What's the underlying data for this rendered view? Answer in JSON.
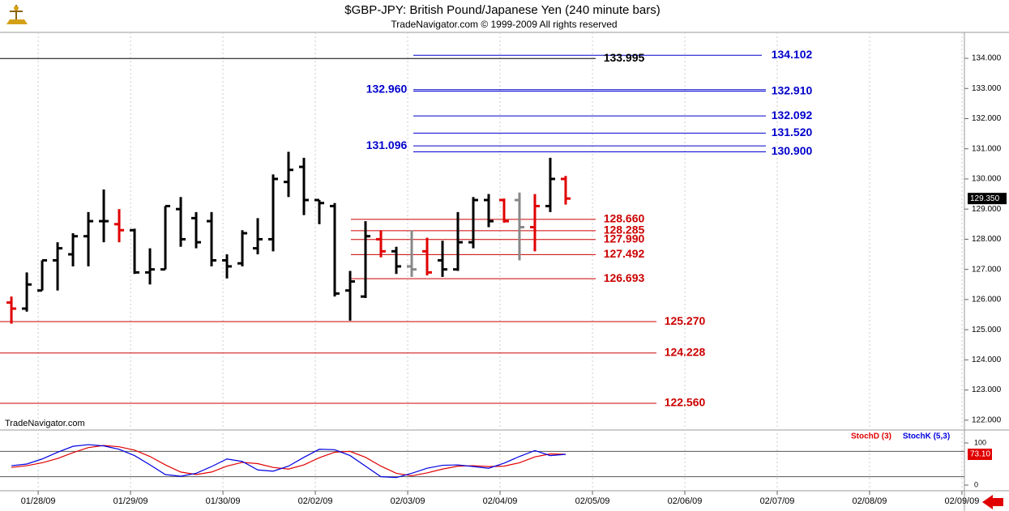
{
  "chart_data": [
    {
      "type": "ohlc",
      "title": "$GBP-JPY:  British Pound/Japanese Yen  (240 minute bars)",
      "subtitle": "TradeNavigator.com © 1999-2009 All rights reserved",
      "watermark": "TradeNavigator.com",
      "x": [
        0,
        1,
        2,
        3,
        4,
        5,
        6,
        7,
        8,
        9,
        10,
        11,
        12,
        13,
        14,
        15,
        16,
        17,
        18,
        19,
        20,
        21,
        22,
        23,
        24,
        25,
        26,
        27,
        28,
        29,
        30,
        31,
        32,
        33,
        34,
        35,
        36
      ],
      "open": [
        125.9,
        125.7,
        126.3,
        127.3,
        127.5,
        128.1,
        128.6,
        128.5,
        128.3,
        126.9,
        127.0,
        129.0,
        128.7,
        128.6,
        127.3,
        127.2,
        127.7,
        128.0,
        129.9,
        130.4,
        129.3,
        129.1,
        126.3,
        126.1,
        128.0,
        127.6,
        127.1,
        127.6,
        127.3,
        127.0,
        127.9,
        129.3,
        129.3,
        129.3,
        128.4,
        129.1,
        130.0
      ],
      "high": [
        126.1,
        126.9,
        127.3,
        127.9,
        128.2,
        128.9,
        129.65,
        129.0,
        128.35,
        127.7,
        129.1,
        129.4,
        128.9,
        128.9,
        127.5,
        128.3,
        128.7,
        130.15,
        130.9,
        130.7,
        129.3,
        129.2,
        126.95,
        128.6,
        128.3,
        127.75,
        128.3,
        128.05,
        127.95,
        128.9,
        129.4,
        129.5,
        129.35,
        129.55,
        129.5,
        130.7,
        130.1
      ],
      "low": [
        125.2,
        125.6,
        126.3,
        126.3,
        127.1,
        127.1,
        127.9,
        127.9,
        126.85,
        126.5,
        127.0,
        127.75,
        127.7,
        127.1,
        126.7,
        127.1,
        127.5,
        127.6,
        129.4,
        128.8,
        128.5,
        126.1,
        125.3,
        126.05,
        127.4,
        126.85,
        126.75,
        126.8,
        126.75,
        126.95,
        127.7,
        128.4,
        128.55,
        127.3,
        127.6,
        128.9,
        129.15
      ],
      "close": [
        125.7,
        126.5,
        127.3,
        127.7,
        128.1,
        128.6,
        128.6,
        128.3,
        126.9,
        127.0,
        129.1,
        128.0,
        127.9,
        127.3,
        127.1,
        128.2,
        128.0,
        130.0,
        130.3,
        129.3,
        129.2,
        126.2,
        126.6,
        128.1,
        127.6,
        127.1,
        127.0,
        126.9,
        127.0,
        127.9,
        129.3,
        128.6,
        128.6,
        128.4,
        129.1,
        130.0,
        129.35
      ],
      "colors": [
        "#e00000",
        "#000000",
        "#000000",
        "#000000",
        "#000000",
        "#000000",
        "#000000",
        "#e00000",
        "#000000",
        "#000000",
        "#000000",
        "#000000",
        "#000000",
        "#000000",
        "#000000",
        "#000000",
        "#000000",
        "#000000",
        "#000000",
        "#000000",
        "#000000",
        "#000000",
        "#000000",
        "#000000",
        "#e00000",
        "#000000",
        "#888888",
        "#e00000",
        "#000000",
        "#000000",
        "#000000",
        "#000000",
        "#e00000",
        "#888888",
        "#e00000",
        "#000000",
        "#e00000"
      ],
      "xlim": [
        -0.74,
        61.9
      ],
      "xticks": [
        {
          "value": 1.74,
          "label": "01/28/09"
        },
        {
          "value": 7.74,
          "label": "01/29/09"
        },
        {
          "value": 13.74,
          "label": "01/30/09"
        },
        {
          "value": 19.74,
          "label": "02/02/09"
        },
        {
          "value": 25.74,
          "label": "02/03/09"
        },
        {
          "value": 31.74,
          "label": "02/04/09"
        },
        {
          "value": 37.74,
          "label": "02/05/09"
        },
        {
          "value": 43.74,
          "label": "02/06/09"
        },
        {
          "value": 49.74,
          "label": "02/07/09"
        },
        {
          "value": 55.74,
          "label": "02/08/09"
        },
        {
          "value": 61.74,
          "label": "02/09/09"
        }
      ],
      "ylim": [
        121.7,
        134.86
      ],
      "yticks": [
        {
          "value": 122,
          "label": "122.000"
        },
        {
          "value": 123,
          "label": "123.000"
        },
        {
          "value": 124,
          "label": "124.000"
        },
        {
          "value": 125,
          "label": "125.000"
        },
        {
          "value": 126,
          "label": "126.000"
        },
        {
          "value": 127,
          "label": "127.000"
        },
        {
          "value": 128,
          "label": "128.000"
        },
        {
          "value": 129,
          "label": "129.000"
        },
        {
          "value": 130,
          "label": "130.000"
        },
        {
          "value": 131,
          "label": "131.000"
        },
        {
          "value": 132,
          "label": "132.000"
        },
        {
          "value": 133,
          "label": "133.000"
        },
        {
          "value": 134,
          "label": "134.000"
        }
      ],
      "last_price": {
        "value": 129.35,
        "label": "129.350"
      },
      "levels": [
        {
          "value": 134.102,
          "label": "134.102",
          "color": "#0000cc"
        },
        {
          "value": 133.995,
          "label": "133.995",
          "color": "#000000"
        },
        {
          "value": 132.96,
          "label": "132.960",
          "color": "#0000cc"
        },
        {
          "value": 132.91,
          "label": "132.910",
          "color": "#0000cc"
        },
        {
          "value": 132.092,
          "label": "132.092",
          "color": "#0000cc"
        },
        {
          "value": 131.52,
          "label": "131.520",
          "color": "#0000cc"
        },
        {
          "value": 131.096,
          "label": "131.096",
          "color": "#0000cc"
        },
        {
          "value": 130.9,
          "label": "130.900",
          "color": "#0000cc"
        },
        {
          "value": 128.66,
          "label": "128.660",
          "color": "#cc0000"
        },
        {
          "value": 128.285,
          "label": "128.285",
          "color": "#cc0000"
        },
        {
          "value": 127.99,
          "label": "127.990",
          "color": "#cc0000"
        },
        {
          "value": 127.492,
          "label": "127.492",
          "color": "#cc0000"
        },
        {
          "value": 126.693,
          "label": "126.693",
          "color": "#cc0000"
        },
        {
          "value": 125.27,
          "label": "125.270",
          "color": "#cc0000"
        },
        {
          "value": 124.228,
          "label": "124.228",
          "color": "#cc0000"
        },
        {
          "value": 122.56,
          "label": "122.560",
          "color": "#cc0000"
        }
      ],
      "grid": true
    },
    {
      "type": "line",
      "series": [
        {
          "name": "StochD (3)",
          "color": "#e00000",
          "values": [
            42,
            46,
            53,
            63,
            77,
            89,
            94,
            91,
            83,
            68,
            48,
            31,
            25,
            31,
            45,
            54,
            51,
            42,
            38,
            48,
            65,
            78,
            80,
            66,
            45,
            28,
            22,
            29,
            38,
            45,
            46,
            44,
            45,
            53,
            67,
            74,
            73.1
          ]
        },
        {
          "name": "StochK (5,3)",
          "color": "#0000e0",
          "values": [
            46,
            50,
            62,
            78,
            92,
            96,
            93,
            85,
            70,
            48,
            25,
            21,
            28,
            44,
            62,
            56,
            36,
            33,
            45,
            66,
            85,
            84,
            70,
            45,
            20,
            18,
            28,
            40,
            47,
            48,
            44,
            40,
            52,
            68,
            82,
            70,
            73
          ]
        }
      ],
      "ylim": [
        -11.5,
        128.8
      ],
      "yticks": [
        0,
        100
      ],
      "levels": [
        20,
        80
      ],
      "last_value": {
        "value": 73.1,
        "label": "73.10"
      }
    }
  ]
}
